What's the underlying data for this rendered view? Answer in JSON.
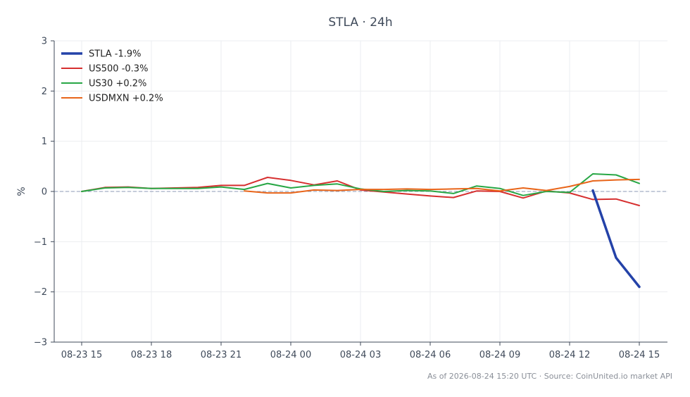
{
  "chart_data": {
    "type": "line",
    "title": "STLA · 24h",
    "ylabel": "%",
    "xlabel": "",
    "ylim": [
      -3,
      3
    ],
    "yticks": [
      "−3",
      "−2",
      "−1",
      "0",
      "1",
      "2",
      "3"
    ],
    "ytick_values": [
      -3,
      -2,
      -1,
      0,
      1,
      2,
      3
    ],
    "x_ticks": [
      "08-23 15",
      "08-23 18",
      "08-23 21",
      "08-24 00",
      "08-24 03",
      "08-24 06",
      "08-24 09",
      "08-24 12",
      "08-24 15"
    ],
    "x": [
      "08-23 15",
      "08-23 16",
      "08-23 17",
      "08-23 18",
      "08-23 19",
      "08-23 20",
      "08-23 21",
      "08-23 22",
      "08-23 23",
      "08-24 00",
      "08-24 01",
      "08-24 02",
      "08-24 03",
      "08-24 04",
      "08-24 05",
      "08-24 06",
      "08-24 07",
      "08-24 08",
      "08-24 09",
      "08-24 10",
      "08-24 11",
      "08-24 12",
      "08-24 13",
      "08-24 14",
      "08-24 15"
    ],
    "grid": true,
    "legend_position": "top-left",
    "zero_line": true,
    "series": [
      {
        "name": "STLA -1.9%",
        "color": "#2442a8",
        "width": 3.5,
        "values": [
          null,
          null,
          null,
          null,
          null,
          null,
          null,
          null,
          null,
          null,
          null,
          null,
          null,
          null,
          null,
          null,
          null,
          null,
          null,
          null,
          null,
          null,
          0.02,
          -1.32,
          -1.9
        ]
      },
      {
        "name": "US500 -0.3%",
        "color": "#d62f2f",
        "width": 2,
        "values": [
          0.0,
          0.08,
          0.09,
          0.06,
          0.07,
          0.08,
          0.12,
          0.12,
          0.28,
          0.22,
          0.13,
          0.21,
          0.03,
          -0.01,
          -0.05,
          -0.09,
          -0.12,
          0.01,
          0.0,
          -0.13,
          0.01,
          -0.03,
          -0.16,
          -0.15,
          -0.28
        ]
      },
      {
        "name": "US30 +0.2%",
        "color": "#28a745",
        "width": 2,
        "values": [
          0.0,
          0.07,
          0.08,
          0.06,
          0.06,
          0.06,
          0.09,
          0.04,
          0.16,
          0.07,
          0.12,
          0.15,
          0.05,
          0.0,
          0.02,
          0.01,
          -0.04,
          0.11,
          0.06,
          -0.08,
          0.0,
          -0.02,
          0.35,
          0.33,
          0.16
        ]
      },
      {
        "name": "USDMXN +0.2%",
        "color": "#e8651a",
        "width": 2,
        "values": [
          null,
          null,
          null,
          null,
          null,
          null,
          null,
          0.01,
          -0.03,
          -0.03,
          0.03,
          0.02,
          0.04,
          0.04,
          0.05,
          0.04,
          0.05,
          0.06,
          0.01,
          0.07,
          0.02,
          0.1,
          0.21,
          0.23,
          0.24
        ]
      }
    ]
  },
  "footer": "As of 2026-08-24 15:20 UTC · Source: CoinUnited.io market API"
}
